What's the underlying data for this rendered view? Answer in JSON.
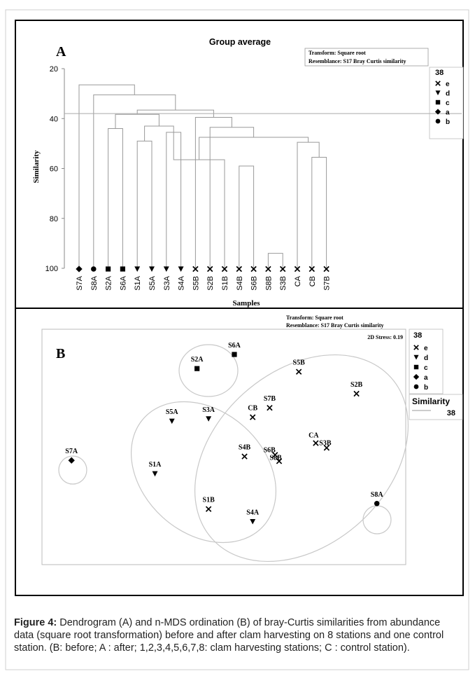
{
  "chart_data": [
    {
      "type": "dendrogram",
      "panel_label": "A",
      "title": "Group average",
      "info_lines": [
        "Transform: Square root",
        "Resemblance: S17 Bray Curtis similarity"
      ],
      "ylabel": "Similarity",
      "xlabel": "Samples",
      "ylim": [
        20,
        100
      ],
      "yticks": [
        20,
        40,
        60,
        80,
        100
      ],
      "cut_level": 38,
      "legend_title": "38",
      "legend": [
        {
          "symbol": "x",
          "label": "e"
        },
        {
          "symbol": "triangle-down",
          "label": "d"
        },
        {
          "symbol": "square",
          "label": "c"
        },
        {
          "symbol": "diamond",
          "label": "a"
        },
        {
          "symbol": "circle",
          "label": "b"
        }
      ],
      "samples": [
        {
          "name": "S7A",
          "group": "a"
        },
        {
          "name": "S8A",
          "group": "b"
        },
        {
          "name": "S2A",
          "group": "c"
        },
        {
          "name": "S6A",
          "group": "c"
        },
        {
          "name": "S1A",
          "group": "d"
        },
        {
          "name": "S5A",
          "group": "d"
        },
        {
          "name": "S3A",
          "group": "d"
        },
        {
          "name": "S4A",
          "group": "d"
        },
        {
          "name": "S5B",
          "group": "e"
        },
        {
          "name": "S2B",
          "group": "e"
        },
        {
          "name": "S1B",
          "group": "e"
        },
        {
          "name": "S4B",
          "group": "e"
        },
        {
          "name": "S6B",
          "group": "e"
        },
        {
          "name": "S8B",
          "group": "e"
        },
        {
          "name": "S3B",
          "group": "e"
        },
        {
          "name": "CA",
          "group": "e"
        },
        {
          "name": "CB",
          "group": "e"
        },
        {
          "name": "S7B",
          "group": "e"
        }
      ],
      "merges": [
        [
          13,
          14,
          94
        ],
        [
          4,
          5,
          49
        ],
        [
          6,
          7,
          45.5
        ],
        [
          11,
          12,
          59
        ],
        [
          16,
          17,
          55.5
        ],
        [
          10,
          20,
          56.5
        ],
        [
          15,
          22,
          49.5
        ],
        [
          2,
          3,
          44
        ],
        [
          19,
          20,
          43
        ],
        [
          23,
          24,
          47.5
        ],
        [
          9,
          27,
          43.5
        ],
        [
          8,
          28,
          39.5
        ],
        [
          25,
          26,
          38.3
        ],
        [
          29,
          30,
          36.6
        ],
        [
          1,
          31,
          30.5
        ],
        [
          0,
          32,
          26.5
        ]
      ]
    },
    {
      "type": "scatter",
      "panel_label": "B",
      "info_lines": [
        "Transform: Square root",
        "Resemblance: S17 Bray Curtis similarity"
      ],
      "stress_label": "2D Stress: 0.19",
      "legend_title": "38",
      "legend": [
        {
          "symbol": "x",
          "label": "e"
        },
        {
          "symbol": "triangle-down",
          "label": "d"
        },
        {
          "symbol": "square",
          "label": "c"
        },
        {
          "symbol": "diamond",
          "label": "a"
        },
        {
          "symbol": "circle",
          "label": "b"
        }
      ],
      "similarity_legend": {
        "title": "Similarity",
        "value": "38"
      },
      "points": [
        {
          "label": "S6A",
          "symbol": "square",
          "x": 0.0,
          "y": 1.0
        },
        {
          "label": "S2A",
          "symbol": "square",
          "x": -0.55,
          "y": 0.82
        },
        {
          "label": "S5B",
          "symbol": "x",
          "x": 0.95,
          "y": 0.78
        },
        {
          "label": "S2B",
          "symbol": "x",
          "x": 1.8,
          "y": 0.5
        },
        {
          "label": "S7B",
          "symbol": "x",
          "x": 0.52,
          "y": 0.32
        },
        {
          "label": "CB",
          "symbol": "x",
          "x": 0.27,
          "y": 0.2
        },
        {
          "label": "S5A",
          "symbol": "triangle-down",
          "x": -0.92,
          "y": 0.15
        },
        {
          "label": "S3A",
          "symbol": "triangle-down",
          "x": -0.38,
          "y": 0.18
        },
        {
          "label": "CA",
          "symbol": "x",
          "x": 1.2,
          "y": -0.13
        },
        {
          "label": "S3B",
          "symbol": "x",
          "x": 1.36,
          "y": -0.19
        },
        {
          "label": "S7A",
          "symbol": "diamond",
          "x": -2.4,
          "y": -0.35
        },
        {
          "label": "S1A",
          "symbol": "triangle-down",
          "x": -1.17,
          "y": -0.52
        },
        {
          "label": "S4B",
          "symbol": "x",
          "x": 0.15,
          "y": -0.3
        },
        {
          "label": "S6B",
          "symbol": "x",
          "x": 0.6,
          "y": -0.28
        },
        {
          "label": "S8B",
          "symbol": "x",
          "x": 0.66,
          "y": -0.36
        },
        {
          "label": "S1B",
          "symbol": "x",
          "x": -0.38,
          "y": -0.97
        },
        {
          "label": "S4A",
          "symbol": "triangle-down",
          "x": 0.27,
          "y": -1.13
        },
        {
          "label": "S8A",
          "symbol": "circle",
          "x": 2.1,
          "y": -0.9
        }
      ]
    }
  ],
  "caption": {
    "bold": "Figure 4:",
    "text": " Dendrogram (A) and n-MDS ordination (B) of bray-Curtis similarities from abundance data (square root transformation) before and after clam harvesting on 8 stations and one control station. (B: before; A : after; 1,2,3,4,5,6,7,8: clam harvesting stations; C : control station)."
  }
}
